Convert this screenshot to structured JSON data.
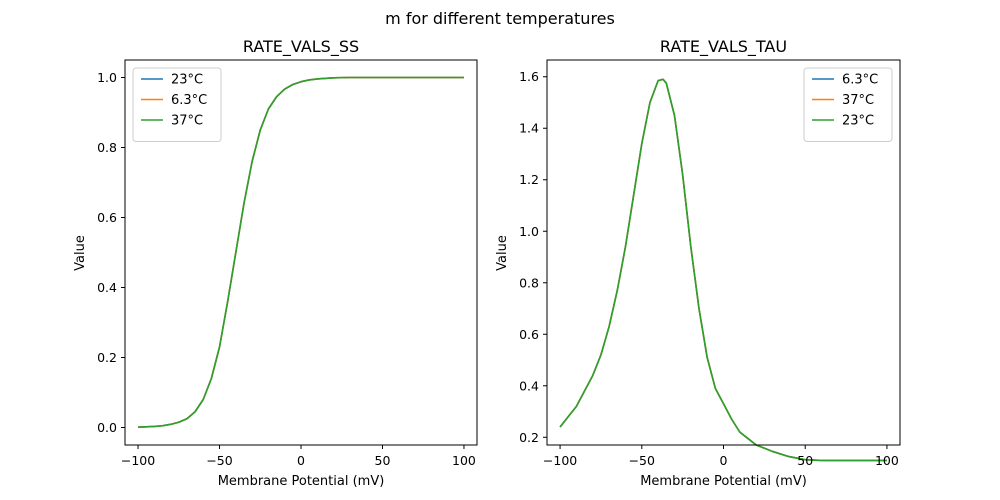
{
  "figure": {
    "suptitle": "m for different temperatures"
  },
  "chart_data": [
    {
      "type": "line",
      "title": "RATE_VALS_SS",
      "xlabel": "Membrane Potential (mV)",
      "ylabel": "Value",
      "xlim": [
        -108,
        108
      ],
      "ylim": [
        -0.05,
        1.05
      ],
      "xticks": [
        -100,
        -50,
        0,
        50,
        100
      ],
      "yticks": [
        0.0,
        0.2,
        0.4,
        0.6,
        0.8,
        1.0
      ],
      "ytick_labels": [
        "0.0",
        "0.2",
        "0.4",
        "0.6",
        "0.8",
        "1.0"
      ],
      "legend_position": "top-left",
      "x": [
        -100,
        -95,
        -90,
        -85,
        -80,
        -75,
        -70,
        -65,
        -60,
        -55,
        -50,
        -45,
        -40,
        -35,
        -30,
        -25,
        -20,
        -15,
        -10,
        -5,
        0,
        5,
        10,
        20,
        30,
        40,
        50,
        60,
        70,
        80,
        90,
        100
      ],
      "series": [
        {
          "name": "23°C",
          "color": "#1f77b4",
          "values": [
            0.001,
            0.002,
            0.003,
            0.005,
            0.009,
            0.015,
            0.025,
            0.045,
            0.08,
            0.14,
            0.23,
            0.36,
            0.5,
            0.64,
            0.76,
            0.85,
            0.91,
            0.945,
            0.967,
            0.98,
            0.988,
            0.993,
            0.996,
            0.999,
            1.0,
            1.0,
            1.0,
            1.0,
            1.0,
            1.0,
            1.0,
            1.0
          ]
        },
        {
          "name": "6.3°C",
          "color": "#ff7f0e",
          "values": [
            0.001,
            0.002,
            0.003,
            0.005,
            0.009,
            0.015,
            0.025,
            0.045,
            0.08,
            0.14,
            0.23,
            0.36,
            0.5,
            0.64,
            0.76,
            0.85,
            0.91,
            0.945,
            0.967,
            0.98,
            0.988,
            0.993,
            0.996,
            0.999,
            1.0,
            1.0,
            1.0,
            1.0,
            1.0,
            1.0,
            1.0,
            1.0
          ]
        },
        {
          "name": "37°C",
          "color": "#2ca02c",
          "values": [
            0.001,
            0.002,
            0.003,
            0.005,
            0.009,
            0.015,
            0.025,
            0.045,
            0.08,
            0.14,
            0.23,
            0.36,
            0.5,
            0.64,
            0.76,
            0.85,
            0.91,
            0.945,
            0.967,
            0.98,
            0.988,
            0.993,
            0.996,
            0.999,
            1.0,
            1.0,
            1.0,
            1.0,
            1.0,
            1.0,
            1.0,
            1.0
          ]
        }
      ]
    },
    {
      "type": "line",
      "title": "RATE_VALS_TAU",
      "xlabel": "Membrane Potential (mV)",
      "ylabel": "Value",
      "xlim": [
        -108,
        108
      ],
      "ylim": [
        0.17,
        1.665
      ],
      "xticks": [
        -100,
        -50,
        0,
        50,
        100
      ],
      "yticks": [
        0.2,
        0.4,
        0.6,
        0.8,
        1.0,
        1.2,
        1.4,
        1.6
      ],
      "ytick_labels": [
        "0.2",
        "0.4",
        "0.6",
        "0.8",
        "1.0",
        "1.2",
        "1.4",
        "1.6"
      ],
      "legend_position": "top-right",
      "x": [
        -100,
        -95,
        -90,
        -85,
        -80,
        -75,
        -70,
        -65,
        -60,
        -55,
        -50,
        -45,
        -40,
        -37,
        -35,
        -30,
        -25,
        -20,
        -15,
        -10,
        -5,
        0,
        5,
        10,
        15,
        20,
        30,
        40,
        50,
        60,
        70,
        80,
        90,
        100
      ],
      "series": [
        {
          "name": "6.3°C",
          "color": "#1f77b4",
          "values": [
            0.24,
            0.28,
            0.32,
            0.38,
            0.44,
            0.52,
            0.63,
            0.77,
            0.94,
            1.14,
            1.34,
            1.5,
            1.585,
            1.59,
            1.575,
            1.45,
            1.22,
            0.94,
            0.7,
            0.51,
            0.39,
            0.33,
            0.27,
            0.22,
            0.195,
            0.17,
            0.145,
            0.125,
            0.113,
            0.11,
            0.11,
            0.11,
            0.11,
            0.11
          ]
        },
        {
          "name": "37°C",
          "color": "#ff7f0e",
          "values": [
            0.24,
            0.28,
            0.32,
            0.38,
            0.44,
            0.52,
            0.63,
            0.77,
            0.94,
            1.14,
            1.34,
            1.5,
            1.585,
            1.59,
            1.575,
            1.45,
            1.22,
            0.94,
            0.7,
            0.51,
            0.39,
            0.33,
            0.27,
            0.22,
            0.195,
            0.17,
            0.145,
            0.125,
            0.113,
            0.11,
            0.11,
            0.11,
            0.11,
            0.11
          ]
        },
        {
          "name": "23°C",
          "color": "#2ca02c",
          "values": [
            0.24,
            0.28,
            0.32,
            0.38,
            0.44,
            0.52,
            0.63,
            0.77,
            0.94,
            1.14,
            1.34,
            1.5,
            1.585,
            1.59,
            1.575,
            1.45,
            1.22,
            0.94,
            0.7,
            0.51,
            0.39,
            0.33,
            0.27,
            0.22,
            0.195,
            0.17,
            0.145,
            0.125,
            0.113,
            0.11,
            0.11,
            0.11,
            0.11,
            0.11
          ]
        }
      ]
    }
  ]
}
